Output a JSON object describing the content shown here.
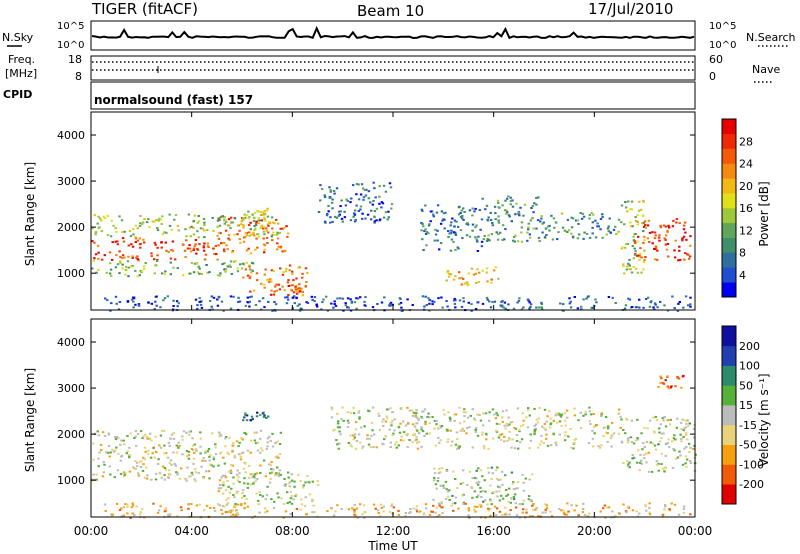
{
  "chart_data": {
    "type": "heatmap",
    "header": {
      "station": "TIGER (fitACF)",
      "beam": "Beam 10",
      "date": "17/Jul/2010"
    },
    "strip_panels": {
      "nsky_label": "N.Sky",
      "nsearch_label": "N.Search",
      "noise_ticks": [
        "10^5",
        "10^0"
      ],
      "freq_label_line1": "Freq.",
      "freq_label_line2": "[MHz]",
      "freq_ticks": [
        "18",
        "8"
      ],
      "nave_label": "Nave",
      "nave_ticks": [
        "60",
        "0"
      ],
      "cpid_label": "CPID",
      "cpid_text": "normalsound (fast) 157"
    },
    "x_axis": {
      "label": "Time UT",
      "ticks": [
        "00:00",
        "04:00",
        "08:00",
        "12:00",
        "16:00",
        "20:00",
        "00:00"
      ],
      "range_hours": [
        0,
        24
      ]
    },
    "y_axis": {
      "label": "Slant Range [km]",
      "ticks": [
        1000,
        2000,
        3000,
        4000
      ],
      "range_km": [
        200,
        4500
      ]
    },
    "panels": [
      {
        "name": "Power",
        "colorbar_label": "Power [dB]",
        "colorbar_ticks": [
          "4",
          "8",
          "12",
          "16",
          "20",
          "24",
          "28"
        ],
        "colorbar_colors": [
          "#0000ee",
          "#1f4fd0",
          "#2e6f9e",
          "#3f8f6a",
          "#5fa65a",
          "#9dc83a",
          "#e0e01a",
          "#f2b814",
          "#f48a10",
          "#f25a0a",
          "#ee2a06",
          "#e60000"
        ],
        "regions": [
          {
            "t0": 0.0,
            "t1": 2.0,
            "r0": 1300,
            "r1": 1800,
            "level": 0.88
          },
          {
            "t0": 2.0,
            "t1": 5.0,
            "r0": 1300,
            "r1": 1750,
            "level": 0.85
          },
          {
            "t0": 5.0,
            "t1": 7.8,
            "r0": 1450,
            "r1": 2250,
            "level": 0.78
          },
          {
            "t0": 6.0,
            "t1": 7.0,
            "r0": 2200,
            "r1": 2450,
            "level": 0.55
          },
          {
            "t0": 0.0,
            "t1": 7.5,
            "r0": 1800,
            "r1": 2300,
            "level": 0.45
          },
          {
            "t0": 0.0,
            "t1": 6.5,
            "r0": 950,
            "r1": 1300,
            "level": 0.4
          },
          {
            "t0": 6.0,
            "t1": 8.6,
            "r0": 600,
            "r1": 1200,
            "level": 0.72
          },
          {
            "t0": 7.0,
            "t1": 8.5,
            "r0": 500,
            "r1": 750,
            "level": 0.8
          },
          {
            "t0": 9.0,
            "t1": 12.0,
            "r0": 2100,
            "r1": 3000,
            "level": 0.2
          },
          {
            "t0": 13.0,
            "t1": 15.5,
            "r0": 1500,
            "r1": 2500,
            "level": 0.22
          },
          {
            "t0": 14.0,
            "t1": 16.2,
            "r0": 750,
            "r1": 1150,
            "level": 0.62
          },
          {
            "t0": 15.5,
            "t1": 17.8,
            "r0": 1700,
            "r1": 2700,
            "level": 0.3
          },
          {
            "t0": 17.8,
            "t1": 21.0,
            "r0": 1750,
            "r1": 2350,
            "level": 0.28
          },
          {
            "t0": 21.5,
            "t1": 23.8,
            "r0": 1300,
            "r1": 2200,
            "level": 0.86
          },
          {
            "t0": 21.0,
            "t1": 22.0,
            "r0": 1000,
            "r1": 2600,
            "level": 0.45
          },
          {
            "t0": 0.5,
            "t1": 23.8,
            "r0": 200,
            "r1": 520,
            "level": 0.15
          }
        ]
      },
      {
        "name": "Velocity",
        "colorbar_label": "Velocity [m s⁻¹]",
        "colorbar_ticks": [
          "-200",
          "-100",
          "-50",
          "-15",
          "15",
          "50",
          "100",
          "200"
        ],
        "colorbar_colors": [
          "#e00000",
          "#f05a08",
          "#f4a010",
          "#e8d27a",
          "#bcbcbc",
          "#56b03a",
          "#2a8c6a",
          "#2040b0",
          "#1010a0"
        ],
        "regions": [
          {
            "t0": 0.0,
            "t1": 7.5,
            "r0": 1000,
            "r1": 2100,
            "level": 0.45
          },
          {
            "t0": 5.0,
            "t1": 9.0,
            "r0": 500,
            "r1": 1200,
            "level": 0.5
          },
          {
            "t0": 9.5,
            "t1": 21.0,
            "r0": 1700,
            "r1": 2600,
            "level": 0.48
          },
          {
            "t0": 13.5,
            "t1": 17.5,
            "r0": 500,
            "r1": 1300,
            "level": 0.52
          },
          {
            "t0": 21.0,
            "t1": 24.0,
            "r0": 1200,
            "r1": 2400,
            "level": 0.5
          },
          {
            "t0": 6.0,
            "t1": 7.0,
            "r0": 2300,
            "r1": 2500,
            "level": 0.8
          },
          {
            "t0": 0.5,
            "t1": 23.8,
            "r0": 200,
            "r1": 520,
            "level": 0.35
          },
          {
            "t0": 22.5,
            "t1": 23.5,
            "r0": 3000,
            "r1": 3300,
            "level": 0.15
          }
        ]
      }
    ]
  }
}
